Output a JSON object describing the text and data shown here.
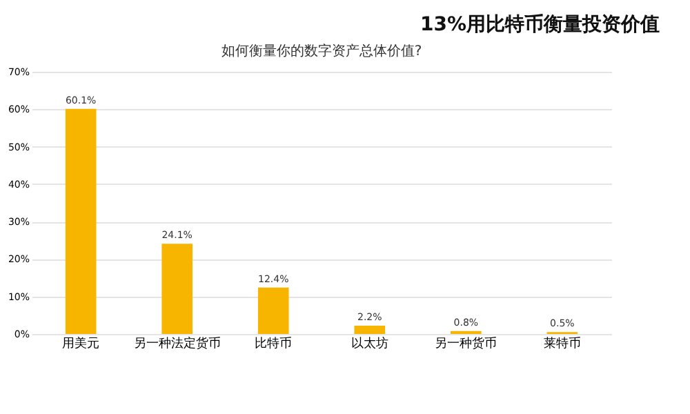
{
  "chart_data": {
    "type": "bar",
    "title": "如何衡量你的数字资产总体价值?",
    "annotations": [
      "13%用比特币衡量投资价值"
    ],
    "categories": [
      "用美元",
      "另一种法定货币",
      "比特币",
      "以太坊",
      "另一种货币",
      "莱特币"
    ],
    "values": [
      60.1,
      24.1,
      12.4,
      2.2,
      0.8,
      0.5
    ],
    "value_labels": [
      "60.1%",
      "24.1%",
      "12.4%",
      "2.2%",
      "0.8%",
      "0.5%"
    ],
    "color": "#f7b500",
    "ylim": [
      0,
      70
    ],
    "yticks": [
      {
        "value": 0,
        "label": "0%"
      },
      {
        "value": 10,
        "label": "10%"
      },
      {
        "value": 20,
        "label": "20%"
      },
      {
        "value": 30,
        "label": "30%"
      },
      {
        "value": 40,
        "label": "40%"
      },
      {
        "value": 50,
        "label": "50%"
      },
      {
        "value": 60,
        "label": "60%"
      },
      {
        "value": 70,
        "label": "70%"
      }
    ],
    "grid": "y"
  }
}
